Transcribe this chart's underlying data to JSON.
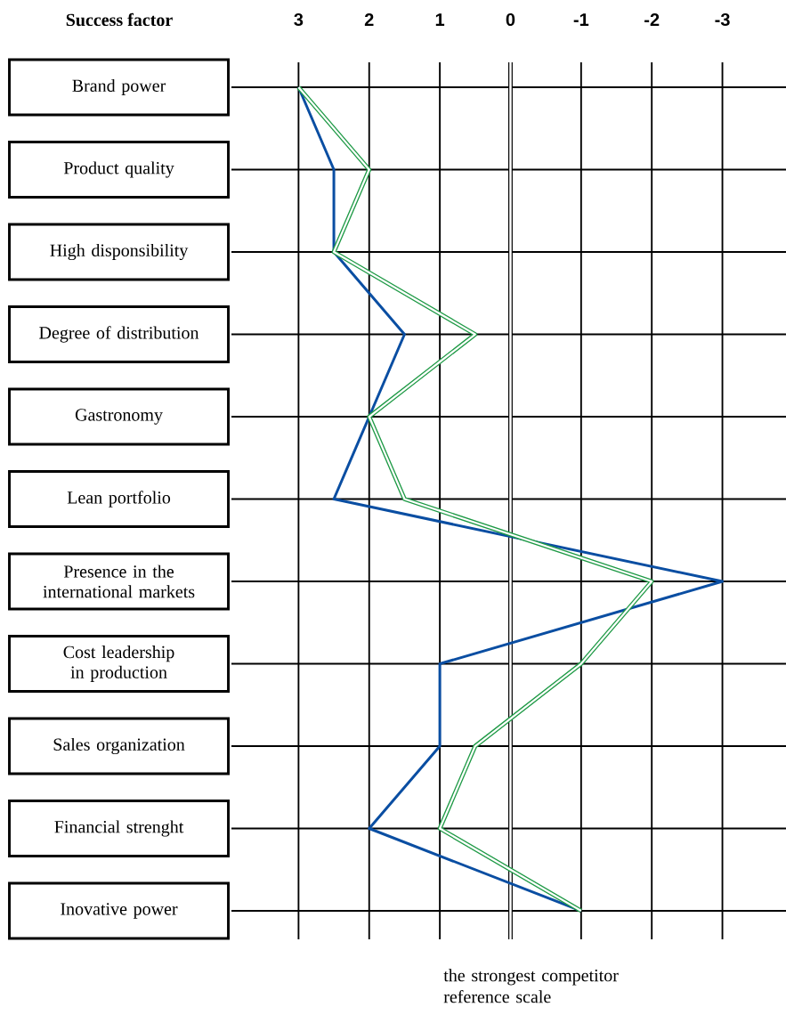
{
  "chart_data": {
    "type": "line",
    "orientation": "horizontal",
    "ylabel": "Success factor",
    "categories": [
      "Brand power",
      "Product quality",
      "High disponsibility",
      "Degree of distribution",
      "Gastronomy",
      "Lean portfolio",
      "Presence in the international markets",
      "Cost leadership in production",
      "Sales organization",
      "Financial strenght",
      "Inovative power"
    ],
    "series": [
      {
        "color": "#0a4ea2",
        "values": [
          3,
          2.5,
          2.5,
          1.5,
          2,
          2.5,
          -3,
          1,
          1,
          2,
          -1
        ]
      },
      {
        "color": "#1f9a46",
        "values": [
          3,
          2,
          2.5,
          0.5,
          2,
          1.5,
          -2,
          -1,
          0.5,
          1,
          -1
        ]
      }
    ],
    "xlim": [
      3.95,
      -3.9
    ],
    "xticks": [
      3,
      2,
      1,
      0,
      -1,
      -2,
      -3
    ],
    "grid": true,
    "ref_lines": [
      {
        "axis": "x",
        "value": 0
      }
    ],
    "annotations": [
      "the strongest competitor reference scale"
    ]
  }
}
